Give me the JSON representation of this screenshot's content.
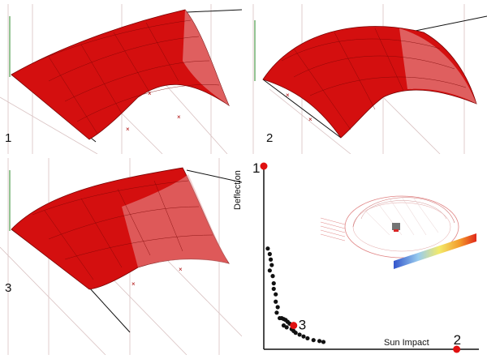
{
  "panels": [
    {
      "label": "1"
    },
    {
      "label": "2"
    },
    {
      "label": "3"
    }
  ],
  "colors": {
    "surface": "#d40f0f",
    "surface_edge": "#7a0505",
    "grid_line": "#c9a7a7",
    "axis": "#111111",
    "highlight": "#e01010",
    "point": "#111111"
  },
  "chart_data": {
    "type": "scatter",
    "xlabel": "Sun Impact",
    "ylabel": "Deflection",
    "points": [
      {
        "x": 0.02,
        "y": 0.55
      },
      {
        "x": 0.03,
        "y": 0.52
      },
      {
        "x": 0.035,
        "y": 0.49
      },
      {
        "x": 0.04,
        "y": 0.46
      },
      {
        "x": 0.03,
        "y": 0.43
      },
      {
        "x": 0.045,
        "y": 0.4
      },
      {
        "x": 0.05,
        "y": 0.36
      },
      {
        "x": 0.05,
        "y": 0.33
      },
      {
        "x": 0.06,
        "y": 0.3
      },
      {
        "x": 0.06,
        "y": 0.26
      },
      {
        "x": 0.07,
        "y": 0.23
      },
      {
        "x": 0.065,
        "y": 0.2
      },
      {
        "x": 0.08,
        "y": 0.17
      },
      {
        "x": 0.09,
        "y": 0.17
      },
      {
        "x": 0.1,
        "y": 0.165
      },
      {
        "x": 0.11,
        "y": 0.16
      },
      {
        "x": 0.12,
        "y": 0.15
      },
      {
        "x": 0.13,
        "y": 0.14
      },
      {
        "x": 0.1,
        "y": 0.13
      },
      {
        "x": 0.115,
        "y": 0.12
      },
      {
        "x": 0.14,
        "y": 0.11
      },
      {
        "x": 0.15,
        "y": 0.1
      },
      {
        "x": 0.16,
        "y": 0.09
      },
      {
        "x": 0.18,
        "y": 0.08
      },
      {
        "x": 0.2,
        "y": 0.07
      },
      {
        "x": 0.22,
        "y": 0.06
      },
      {
        "x": 0.25,
        "y": 0.05
      },
      {
        "x": 0.28,
        "y": 0.045
      },
      {
        "x": 0.3,
        "y": 0.04
      }
    ],
    "highlighted": [
      {
        "label": "1",
        "x": 0.0,
        "y": 1.0
      },
      {
        "label": "3",
        "x": 0.15,
        "y": 0.13
      },
      {
        "label": "2",
        "x": 0.97,
        "y": 0.0
      }
    ],
    "xlim": [
      0,
      1
    ],
    "ylim": [
      0,
      1
    ]
  }
}
